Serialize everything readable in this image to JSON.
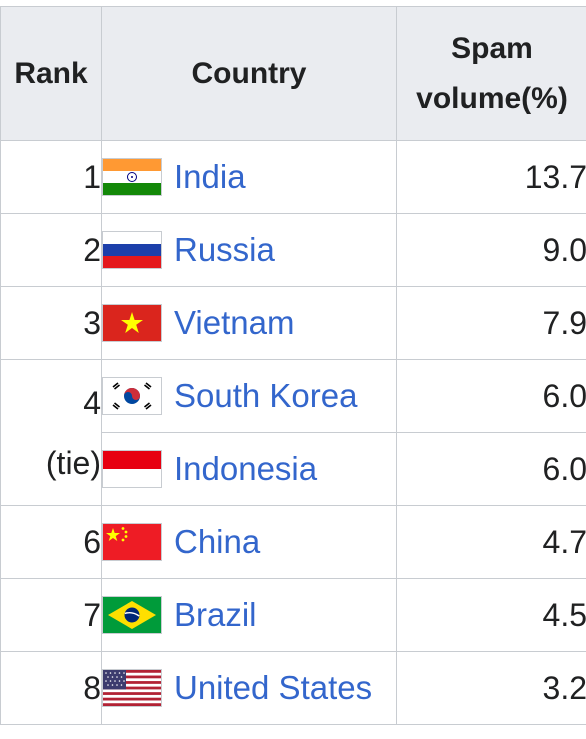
{
  "table": {
    "headers": {
      "rank": "Rank",
      "country": "Country",
      "spam_line1": "Spam",
      "spam_line2": "volume(%)"
    },
    "rows": [
      {
        "rank": "1",
        "country": "India",
        "volume": "13.7",
        "flag": "india-flag-icon"
      },
      {
        "rank": "2",
        "country": "Russia",
        "volume": "9.0",
        "flag": "russia-flag-icon"
      },
      {
        "rank": "3",
        "country": "Vietnam",
        "volume": "7.9",
        "flag": "vietnam-flag-icon"
      },
      {
        "rank": "4",
        "rank_note": "(tie)",
        "country": "South Korea",
        "volume": "6.0",
        "flag": "south-korea-flag-icon"
      },
      {
        "country": "Indonesia",
        "volume": "6.0",
        "flag": "indonesia-flag-icon"
      },
      {
        "rank": "6",
        "country": "China",
        "volume": "4.7",
        "flag": "china-flag-icon"
      },
      {
        "rank": "7",
        "country": "Brazil",
        "volume": "4.5",
        "flag": "brazil-flag-icon"
      },
      {
        "rank": "8",
        "country": "United States",
        "volume": "3.2",
        "flag": "usa-flag-icon"
      }
    ]
  },
  "colors": {
    "link": "#3366cc",
    "header_bg": "#eaecf0",
    "border": "#c8ccd1"
  }
}
